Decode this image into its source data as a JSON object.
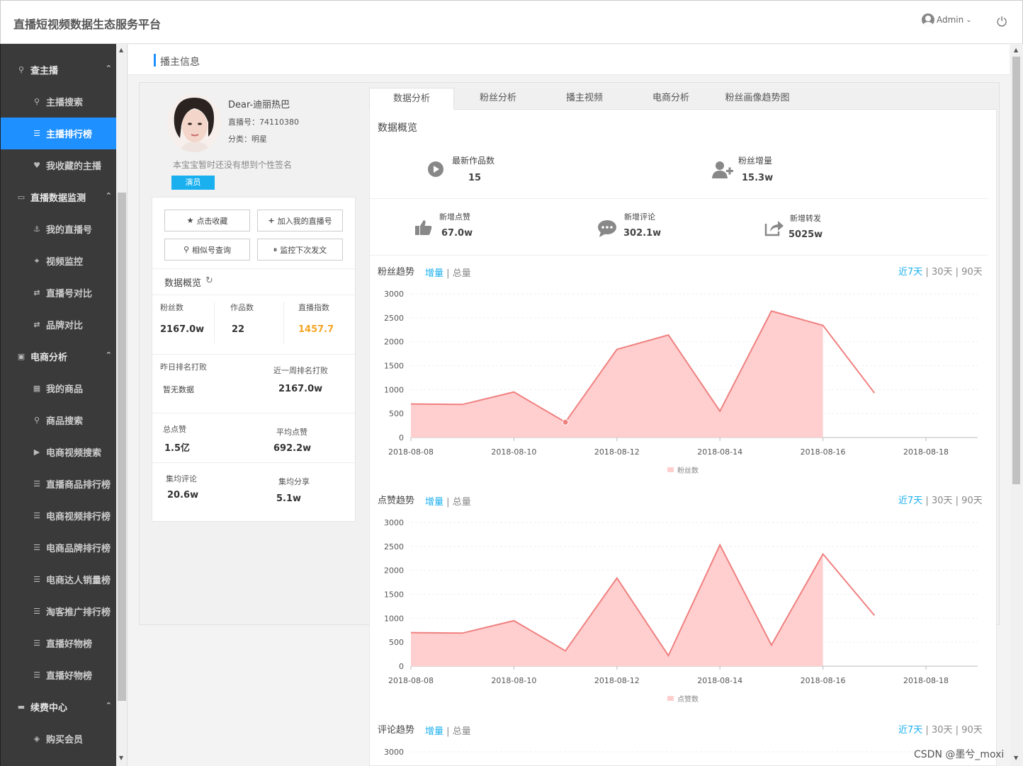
{
  "app": {
    "title": "直播短视频数据生态服务平台",
    "user": "Admin"
  },
  "sidebar": {
    "items": [
      {
        "label": "查主播",
        "type": "group",
        "icon": "search-icon",
        "glyph": "⚲"
      },
      {
        "label": "主播搜索",
        "type": "sub",
        "icon": "search-icon",
        "glyph": "⚲"
      },
      {
        "label": "主播排行榜",
        "type": "sub",
        "icon": "list-icon",
        "glyph": "☰",
        "active": true
      },
      {
        "label": "我收藏的主播",
        "type": "sub",
        "icon": "heart-icon",
        "glyph": "♥"
      },
      {
        "label": "直播数据监测",
        "type": "group",
        "icon": "laptop-icon",
        "glyph": "▭"
      },
      {
        "label": "我的直播号",
        "type": "sub",
        "icon": "anchor-icon",
        "glyph": "⚓"
      },
      {
        "label": "视频监控",
        "type": "sub",
        "icon": "crosshair-icon",
        "glyph": "⌖"
      },
      {
        "label": "直播号对比",
        "type": "sub",
        "icon": "retweet-icon",
        "glyph": "⇄"
      },
      {
        "label": "品牌对比",
        "type": "sub",
        "icon": "retweet-icon",
        "glyph": "⇄"
      },
      {
        "label": "电商分析",
        "type": "group",
        "icon": "shopping-bag-icon",
        "glyph": "▣"
      },
      {
        "label": "我的商品",
        "type": "sub",
        "icon": "grid-icon",
        "glyph": "▦"
      },
      {
        "label": "商品搜索",
        "type": "sub",
        "icon": "search-icon",
        "glyph": "⚲"
      },
      {
        "label": "电商视频搜索",
        "type": "sub",
        "icon": "play-circle-icon",
        "glyph": "▶"
      },
      {
        "label": "直播商品排行榜",
        "type": "sub",
        "icon": "list-icon",
        "glyph": "☰"
      },
      {
        "label": "电商视频排行榜",
        "type": "sub",
        "icon": "list-icon",
        "glyph": "☰"
      },
      {
        "label": "电商品牌排行榜",
        "type": "sub",
        "icon": "list-icon",
        "glyph": "☰"
      },
      {
        "label": "电商达人销量榜",
        "type": "sub",
        "icon": "list-icon",
        "glyph": "☰"
      },
      {
        "label": "淘客推广排行榜",
        "type": "sub",
        "icon": "list-icon",
        "glyph": "☰"
      },
      {
        "label": "直播好物榜",
        "type": "sub",
        "icon": "list-icon",
        "glyph": "☰"
      },
      {
        "label": "直播好物榜",
        "type": "sub",
        "icon": "list-icon",
        "glyph": "☰"
      },
      {
        "label": "续费中心",
        "type": "group",
        "icon": "credit-card-icon",
        "glyph": "▬"
      },
      {
        "label": "购买会员",
        "type": "sub",
        "icon": "vip-icon",
        "glyph": "◈"
      }
    ]
  },
  "page": {
    "title": "播主信息"
  },
  "profile": {
    "name": "Dear-迪丽热巴",
    "id_text": "直播号：74110380",
    "category_text": "分类：明星",
    "signature": "本宝宝暂时还没有想到个性签名",
    "tag": "演员"
  },
  "actions": {
    "favorite": "点击收藏",
    "add": "加入我的直播号",
    "similar": "相似号查询",
    "monitor": "监控下次发文"
  },
  "overview": {
    "title": "数据概览",
    "fans_label": "粉丝数",
    "fans_value": "2167.0w",
    "works_label": "作品数",
    "works_value": "22",
    "index_label": "直播指数",
    "index_value": "1457.7",
    "yesterday_label": "昨日排名打败",
    "yesterday_value": "暂无数据",
    "week_label": "近一周排名打败",
    "week_value": "2167.0w",
    "likes_label": "总点赞",
    "likes_value": "1.5亿",
    "avg_likes_label": "平均点赞",
    "avg_likes_value": "692.2w",
    "avg_comments_label": "集均评论",
    "avg_comments_value": "20.6w",
    "avg_share_label": "集均分享",
    "avg_share_value": "5.1w"
  },
  "tabs": [
    "数据分析",
    "粉丝分析",
    "播主视频",
    "电商分析",
    "粉丝画像趋势图"
  ],
  "kpi": {
    "title": "数据概览",
    "new_works_label": "最新作品数",
    "new_works_value": "15",
    "fans_growth_label": "粉丝增量",
    "fans_growth_value": "15.3w",
    "new_likes_label": "新增点赞",
    "new_likes_value": "67.0w",
    "new_comments_label": "新增评论",
    "new_comments_value": "302.1w",
    "new_shares_label": "新增转发",
    "new_shares_value": "5025w"
  },
  "controls": {
    "increment": "增量",
    "sep": "|",
    "total": "总量",
    "r7": "近7天",
    "r30": "30天",
    "r90": "90天"
  },
  "chart_data": [
    {
      "type": "area",
      "title": "粉丝趋势",
      "legend": "粉丝数",
      "x_ticks": [
        "2018-08-08",
        "2018-08-10",
        "2018-08-12",
        "2018-08-14",
        "2018-08-16",
        "2018-08-18"
      ],
      "y_ticks": [
        0,
        500,
        1000,
        1500,
        2000,
        2500,
        3000
      ],
      "ylim": [
        0,
        3000
      ],
      "x": [
        "2018-08-08",
        "2018-08-09",
        "2018-08-10",
        "2018-08-11",
        "2018-08-12",
        "2018-08-13",
        "2018-08-14",
        "2018-08-15",
        "2018-08-16",
        "2018-08-17"
      ],
      "values": [
        700,
        690,
        950,
        320,
        1840,
        2140,
        550,
        2640,
        2340,
        930
      ],
      "area_end_x": "2018-08-16",
      "color": "#f08080",
      "fill": "#ffcfcf"
    },
    {
      "type": "area",
      "title": "点赞趋势",
      "legend": "点赞数",
      "x_ticks": [
        "2018-08-08",
        "2018-08-10",
        "2018-08-12",
        "2018-08-14",
        "2018-08-16",
        "2018-08-18"
      ],
      "y_ticks": [
        0,
        500,
        1000,
        1500,
        2000,
        2500,
        3000
      ],
      "ylim": [
        0,
        3000
      ],
      "x": [
        "2018-08-08",
        "2018-08-09",
        "2018-08-10",
        "2018-08-11",
        "2018-08-12",
        "2018-08-13",
        "2018-08-14",
        "2018-08-15",
        "2018-08-16",
        "2018-08-17"
      ],
      "values": [
        700,
        690,
        950,
        320,
        1840,
        220,
        2530,
        440,
        2340,
        1060
      ],
      "area_end_x": "2018-08-16",
      "color": "#f08080",
      "fill": "#ffcfcf"
    },
    {
      "type": "area",
      "title": "评论趋势",
      "y_ticks": [
        3000
      ],
      "ylim": [
        0,
        3000
      ]
    }
  ],
  "watermark": "CSDN @墨兮_moxi"
}
